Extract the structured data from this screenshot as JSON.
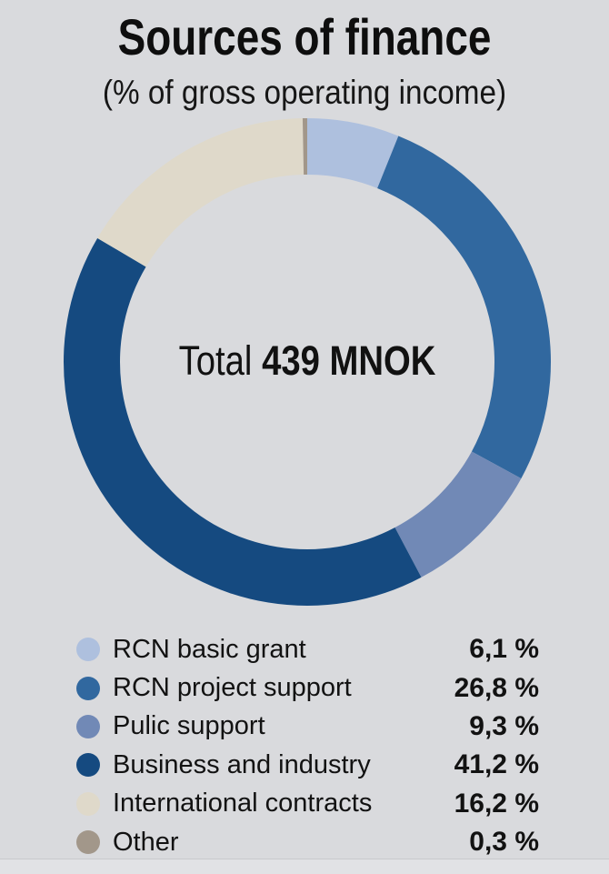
{
  "background": "#d9dadd",
  "header": {
    "title": "Sources of finance",
    "subtitle": "(% of gross operating income)"
  },
  "center_label": {
    "prefix": "Total",
    "value": "439 MNOK"
  },
  "chart_data": {
    "type": "pie",
    "variant": "donut",
    "title": "Sources of finance",
    "subtitle": "(% of gross operating income)",
    "center_text": "Total 439 MNOK",
    "total_value_mnok": 439,
    "start_angle_deg": 0,
    "direction": "clockwise",
    "legend_position": "bottom",
    "segments": [
      {
        "label": "RCN basic grant",
        "value": 6.1,
        "display": "6,1 %",
        "color": "#aec0de"
      },
      {
        "label": "RCN project support",
        "value": 26.8,
        "display": "26,8 %",
        "color": "#31689f"
      },
      {
        "label": "Pulic support",
        "value": 9.3,
        "display": "9,3 %",
        "color": "#7189b6"
      },
      {
        "label": "Business and industry",
        "value": 41.2,
        "display": "41,2 %",
        "color": "#154a80"
      },
      {
        "label": "International contracts",
        "value": 16.2,
        "display": "16,2 %",
        "color": "#dfd9ca"
      },
      {
        "label": "Other",
        "value": 0.3,
        "display": "0,3 %",
        "color": "#a2978a"
      }
    ]
  }
}
